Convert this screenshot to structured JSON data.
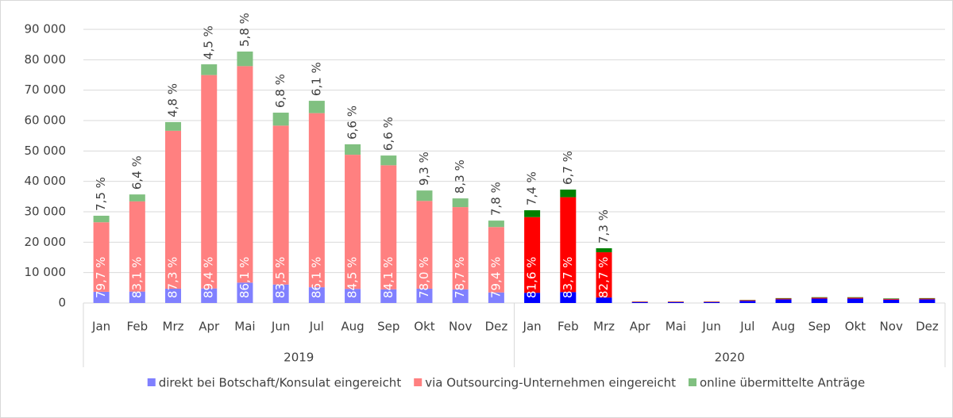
{
  "chart_data": {
    "type": "stacked_bar",
    "categories": [
      "Jan",
      "Feb",
      "Mrz",
      "Apr",
      "Mai",
      "Jun",
      "Jul",
      "Aug",
      "Sep",
      "Okt",
      "Nov",
      "Dez",
      "Jan",
      "Feb",
      "Mrz",
      "Apr",
      "Mai",
      "Jun",
      "Jul",
      "Aug",
      "Sep",
      "Okt",
      "Nov",
      "Dez"
    ],
    "groups": [
      "2019",
      "2020"
    ],
    "group_sizes": [
      12,
      12
    ],
    "ylim": [
      0,
      90000
    ],
    "yticks": [
      0,
      {
        "value": 10000,
        "label": "10 000"
      },
      {
        "value": 20000,
        "label": "20 000"
      },
      {
        "value": 30000,
        "label": "30 000"
      },
      {
        "value": 40000,
        "label": "40 000"
      },
      {
        "value": 50000,
        "label": "50 000"
      },
      {
        "value": 60000,
        "label": "60 000"
      },
      {
        "value": 70000,
        "label": "70 000"
      },
      {
        "value": 80000,
        "label": "80 000"
      },
      {
        "value": 90000,
        "label": "90 000"
      }
    ],
    "grid": true,
    "legend": "bottom",
    "series": [
      {
        "name": "direkt bei Botschaft/Konsulat eingereicht",
        "color": "#8080ff",
        "group_colors": [
          "#8080ff",
          "#0000ff"
        ],
        "values": [
          3674,
          3749,
          4700,
          4789,
          6699,
          6072,
          5187,
          4646,
          4511,
          4699,
          4472,
          3469,
          3355,
          3581,
          1800,
          300,
          300,
          300,
          700,
          1200,
          1450,
          1450,
          1100,
          1200
        ]
      },
      {
        "name": "via Outsourcing-Unternehmen eingereicht",
        "color": "#ff8080",
        "group_colors": [
          "#ff8080",
          "#ff0000"
        ],
        "values": [
          22874,
          29667,
          51944,
          70179,
          71205,
          52271,
          57257,
          44109,
          40789,
          28860,
          27073,
          21517,
          24888,
          31220,
          14886,
          150,
          150,
          150,
          200,
          250,
          300,
          300,
          250,
          250
        ],
        "share_labels": [
          "79,7 %",
          "83,1 %",
          "87,3 %",
          "89,4 %",
          "86,1 %",
          "83,5 %",
          "86,1 %",
          "84,5 %",
          "84,1 %",
          "78,0 %",
          "78,7 %",
          "79,4 %",
          "81,6 %",
          "83,7 %",
          "82,7 %",
          null,
          null,
          null,
          null,
          null,
          null,
          null,
          null,
          null
        ]
      },
      {
        "name": "online übermittelte Anträge",
        "color": "#80c080",
        "group_colors": [
          "#80c080",
          "#008000"
        ],
        "values": [
          2153,
          2285,
          2856,
          3533,
          4797,
          4257,
          4057,
          3445,
          3201,
          3441,
          2855,
          2114,
          2257,
          2499,
          1314,
          50,
          50,
          50,
          100,
          150,
          150,
          150,
          150,
          150
        ],
        "share_labels": [
          "7,5 %",
          "6,4 %",
          "4,8 %",
          "4,5 %",
          "5,8 %",
          "6,8 %",
          "6,1 %",
          "6,6 %",
          "6,6 %",
          "9,3 %",
          "8,3 %",
          "7,8 %",
          "7,4 %",
          "6,7 %",
          "7,3 %",
          null,
          null,
          null,
          null,
          null,
          null,
          null,
          null,
          null
        ]
      }
    ]
  }
}
